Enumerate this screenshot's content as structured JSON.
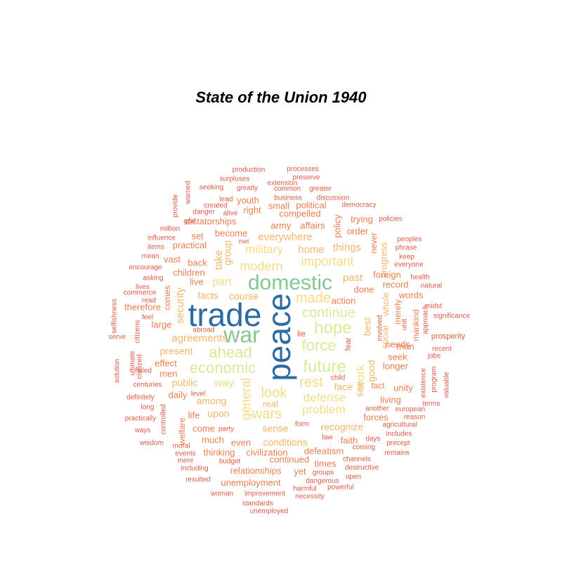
{
  "chart_data": {
    "type": "wordcloud",
    "title": "State of the Union 1940",
    "colors": {
      "tier1": "#2c6aa6",
      "tier2": "#82c792",
      "tier3": "#dbe897",
      "tier4": "#f4dc87",
      "tier5": "#f2b669",
      "tier6": "#e77d4e",
      "tier7": "#da5a45"
    },
    "words": [
      {
        "text": "peace",
        "tier": 1,
        "size": 46,
        "rotate": true
      },
      {
        "text": "trade",
        "tier": 1,
        "size": 46
      },
      {
        "text": "war",
        "tier": 2,
        "size": 32
      },
      {
        "text": "domestic",
        "tier": 2,
        "size": 30
      },
      {
        "text": "hope",
        "tier": 3,
        "size": 24
      },
      {
        "text": "future",
        "tier": 3,
        "size": 24
      },
      {
        "text": "force",
        "tier": 3,
        "size": 22
      },
      {
        "text": "economic",
        "tier": 3,
        "size": 22
      },
      {
        "text": "ahead",
        "tier": 3,
        "size": 22
      },
      {
        "text": "continue",
        "tier": 3,
        "size": 20
      },
      {
        "text": "made",
        "tier": 4,
        "size": 20
      },
      {
        "text": "rest",
        "tier": 4,
        "size": 20
      },
      {
        "text": "look",
        "tier": 4,
        "size": 20
      },
      {
        "text": "wars",
        "tier": 4,
        "size": 20
      },
      {
        "text": "important",
        "tier": 4,
        "size": 18
      },
      {
        "text": "modern",
        "tier": 4,
        "size": 18
      },
      {
        "text": "military",
        "tier": 4,
        "size": 17
      },
      {
        "text": "general",
        "tier": 4,
        "size": 18,
        "rotate": true
      },
      {
        "text": "defense",
        "tier": 4,
        "size": 17
      },
      {
        "text": "problem",
        "tier": 4,
        "size": 17
      },
      {
        "text": "work",
        "tier": 4,
        "size": 17,
        "rotate": true
      },
      {
        "text": "part",
        "tier": 4,
        "size": 16
      },
      {
        "text": "way",
        "tier": 4,
        "size": 16
      },
      {
        "text": "everywhere",
        "tier": 5,
        "size": 15
      },
      {
        "text": "things",
        "tier": 5,
        "size": 15
      },
      {
        "text": "home",
        "tier": 5,
        "size": 15
      },
      {
        "text": "past",
        "tier": 5,
        "size": 15
      },
      {
        "text": "take",
        "tier": 5,
        "size": 15,
        "rotate": true
      },
      {
        "text": "group",
        "tier": 5,
        "size": 14,
        "rotate": true
      },
      {
        "text": "course",
        "tier": 5,
        "size": 14
      },
      {
        "text": "facts",
        "tier": 5,
        "size": 14
      },
      {
        "text": "security",
        "tier": 5,
        "size": 15,
        "rotate": true
      },
      {
        "text": "agreements",
        "tier": 5,
        "size": 15
      },
      {
        "text": "present",
        "tier": 5,
        "size": 14
      },
      {
        "text": "public",
        "tier": 5,
        "size": 14
      },
      {
        "text": "among",
        "tier": 5,
        "size": 14
      },
      {
        "text": "upon",
        "tier": 5,
        "size": 14
      },
      {
        "text": "real",
        "tier": 5,
        "size": 13
      },
      {
        "text": "sense",
        "tier": 5,
        "size": 14
      },
      {
        "text": "conditions",
        "tier": 5,
        "size": 14
      },
      {
        "text": "recognize",
        "tier": 5,
        "size": 14
      },
      {
        "text": "see",
        "tier": 5,
        "size": 14,
        "rotate": true
      },
      {
        "text": "face",
        "tier": 5,
        "size": 14
      },
      {
        "text": "good",
        "tier": 5,
        "size": 14,
        "rotate": true
      },
      {
        "text": "best",
        "tier": 5,
        "size": 14,
        "rotate": true
      },
      {
        "text": "social",
        "tier": 5,
        "size": 13,
        "rotate": true
      },
      {
        "text": "whole",
        "tier": 5,
        "size": 13,
        "rotate": true
      },
      {
        "text": "progress",
        "tier": 5,
        "size": 13,
        "rotate": true
      },
      {
        "text": "action",
        "tier": 6,
        "size": 13
      },
      {
        "text": "done",
        "tier": 6,
        "size": 13
      },
      {
        "text": "record",
        "tier": 6,
        "size": 13
      },
      {
        "text": "foreign",
        "tier": 6,
        "size": 13
      },
      {
        "text": "order",
        "tier": 6,
        "size": 13
      },
      {
        "text": "policy",
        "tier": 6,
        "size": 13,
        "rotate": true
      },
      {
        "text": "trying",
        "tier": 6,
        "size": 13
      },
      {
        "text": "army",
        "tier": 6,
        "size": 13
      },
      {
        "text": "affairs",
        "tier": 6,
        "size": 13
      },
      {
        "text": "become",
        "tier": 6,
        "size": 13
      },
      {
        "text": "compelled",
        "tier": 6,
        "size": 13
      },
      {
        "text": "political",
        "tier": 6,
        "size": 13
      },
      {
        "text": "small",
        "tier": 6,
        "size": 13
      },
      {
        "text": "right",
        "tier": 6,
        "size": 13
      },
      {
        "text": "youth",
        "tier": 6,
        "size": 13
      },
      {
        "text": "dictatorships",
        "tier": 6,
        "size": 13
      },
      {
        "text": "set",
        "tier": 6,
        "size": 13
      },
      {
        "text": "practical",
        "tier": 6,
        "size": 13
      },
      {
        "text": "vast",
        "tier": 6,
        "size": 13
      },
      {
        "text": "back",
        "tier": 6,
        "size": 13
      },
      {
        "text": "children",
        "tier": 6,
        "size": 13
      },
      {
        "text": "live",
        "tier": 6,
        "size": 13
      },
      {
        "text": "comes",
        "tier": 6,
        "size": 12,
        "rotate": true
      },
      {
        "text": "therefore",
        "tier": 6,
        "size": 13
      },
      {
        "text": "large",
        "tier": 6,
        "size": 13
      },
      {
        "text": "effect",
        "tier": 6,
        "size": 13
      },
      {
        "text": "men",
        "tier": 6,
        "size": 13
      },
      {
        "text": "daily",
        "tier": 6,
        "size": 13
      },
      {
        "text": "life",
        "tier": 6,
        "size": 13
      },
      {
        "text": "welfare",
        "tier": 6,
        "size": 12,
        "rotate": true
      },
      {
        "text": "come",
        "tier": 6,
        "size": 13
      },
      {
        "text": "much",
        "tier": 6,
        "size": 13
      },
      {
        "text": "thinking",
        "tier": 6,
        "size": 13
      },
      {
        "text": "even",
        "tier": 6,
        "size": 13
      },
      {
        "text": "civilization",
        "tier": 6,
        "size": 13
      },
      {
        "text": "continued",
        "tier": 6,
        "size": 13
      },
      {
        "text": "defeatism",
        "tier": 6,
        "size": 13
      },
      {
        "text": "faith",
        "tier": 6,
        "size": 13
      },
      {
        "text": "times",
        "tier": 6,
        "size": 13
      },
      {
        "text": "yet",
        "tier": 6,
        "size": 13
      },
      {
        "text": "relationships",
        "tier": 6,
        "size": 13
      },
      {
        "text": "unemployment",
        "tier": 6,
        "size": 13
      },
      {
        "text": "forces",
        "tier": 6,
        "size": 13
      },
      {
        "text": "living",
        "tier": 6,
        "size": 13
      },
      {
        "text": "fact",
        "tier": 6,
        "size": 12
      },
      {
        "text": "unity",
        "tier": 6,
        "size": 13
      },
      {
        "text": "longer",
        "tier": 6,
        "size": 13
      },
      {
        "text": "seek",
        "tier": 6,
        "size": 13
      },
      {
        "text": "needs",
        "tier": 6,
        "size": 13
      },
      {
        "text": "man",
        "tier": 6,
        "size": 13
      },
      {
        "text": "mankind",
        "tier": 6,
        "size": 12,
        "rotate": true
      },
      {
        "text": "merely",
        "tier": 6,
        "size": 12,
        "rotate": true
      },
      {
        "text": "words",
        "tier": 6,
        "size": 13
      },
      {
        "text": "never",
        "tier": 6,
        "size": 12,
        "rotate": true
      },
      {
        "text": "fear",
        "tier": 7,
        "size": 11,
        "rotate": true
      },
      {
        "text": "lie",
        "tier": 7,
        "size": 12
      },
      {
        "text": "production",
        "tier": 7,
        "size": 10
      },
      {
        "text": "processes",
        "tier": 7,
        "size": 10
      },
      {
        "text": "surpluses",
        "tier": 7,
        "size": 10
      },
      {
        "text": "preserve",
        "tier": 7,
        "size": 10
      },
      {
        "text": "extension",
        "tier": 7,
        "size": 10
      },
      {
        "text": "seeking",
        "tier": 7,
        "size": 10
      },
      {
        "text": "greatly",
        "tier": 7,
        "size": 10
      },
      {
        "text": "common",
        "tier": 7,
        "size": 10
      },
      {
        "text": "greater",
        "tier": 7,
        "size": 10
      },
      {
        "text": "warned",
        "tier": 7,
        "size": 10,
        "rotate": true
      },
      {
        "text": "lead",
        "tier": 7,
        "size": 10
      },
      {
        "text": "business",
        "tier": 7,
        "size": 10
      },
      {
        "text": "discussion",
        "tier": 7,
        "size": 10
      },
      {
        "text": "provide",
        "tier": 7,
        "size": 10,
        "rotate": true
      },
      {
        "text": "created",
        "tier": 7,
        "size": 10
      },
      {
        "text": "democracy",
        "tier": 7,
        "size": 10
      },
      {
        "text": "danger",
        "tier": 7,
        "size": 10
      },
      {
        "text": "alive",
        "tier": 7,
        "size": 10
      },
      {
        "text": "god",
        "tier": 7,
        "size": 10
      },
      {
        "text": "policies",
        "tier": 7,
        "size": 10
      },
      {
        "text": "million",
        "tier": 7,
        "size": 10
      },
      {
        "text": "influence",
        "tier": 7,
        "size": 10
      },
      {
        "text": "met",
        "tier": 7,
        "size": 9
      },
      {
        "text": "peoples",
        "tier": 7,
        "size": 10
      },
      {
        "text": "items",
        "tier": 7,
        "size": 10
      },
      {
        "text": "phrase",
        "tier": 7,
        "size": 10
      },
      {
        "text": "mean",
        "tier": 7,
        "size": 10
      },
      {
        "text": "keep",
        "tier": 7,
        "size": 10
      },
      {
        "text": "everyone",
        "tier": 7,
        "size": 10
      },
      {
        "text": "encourage",
        "tier": 7,
        "size": 10
      },
      {
        "text": "asking",
        "tier": 7,
        "size": 10
      },
      {
        "text": "health",
        "tier": 7,
        "size": 10
      },
      {
        "text": "natural",
        "tier": 7,
        "size": 10
      },
      {
        "text": "lives",
        "tier": 7,
        "size": 10
      },
      {
        "text": "commerce",
        "tier": 7,
        "size": 10
      },
      {
        "text": "selfishness",
        "tier": 7,
        "size": 10,
        "rotate": true
      },
      {
        "text": "read",
        "tier": 7,
        "size": 10
      },
      {
        "text": "unit",
        "tier": 7,
        "size": 10,
        "rotate": true
      },
      {
        "text": "approach",
        "tier": 7,
        "size": 10,
        "rotate": true
      },
      {
        "text": "midst",
        "tier": 7,
        "size": 10
      },
      {
        "text": "significance",
        "tier": 7,
        "size": 10
      },
      {
        "text": "involved",
        "tier": 7,
        "size": 10,
        "rotate": true
      },
      {
        "text": "feel",
        "tier": 7,
        "size": 10
      },
      {
        "text": "abroad",
        "tier": 7,
        "size": 10
      },
      {
        "text": "prosperity",
        "tier": 7,
        "size": 11
      },
      {
        "text": "serve",
        "tier": 7,
        "size": 10
      },
      {
        "text": "citizens",
        "tier": 7,
        "size": 10,
        "rotate": true
      },
      {
        "text": "recent",
        "tier": 7,
        "size": 10
      },
      {
        "text": "jobs",
        "tier": 7,
        "size": 10
      },
      {
        "text": "ultimate",
        "tier": 7,
        "size": 10,
        "rotate": true
      },
      {
        "text": "civilized",
        "tier": 7,
        "size": 10,
        "rotate": true
      },
      {
        "text": "solution",
        "tier": 7,
        "size": 10,
        "rotate": true
      },
      {
        "text": "failed",
        "tier": 7,
        "size": 10
      },
      {
        "text": "centuries",
        "tier": 7,
        "size": 10
      },
      {
        "text": "child",
        "tier": 7,
        "size": 10
      },
      {
        "text": "existence",
        "tier": 7,
        "size": 10,
        "rotate": true
      },
      {
        "text": "program",
        "tier": 7,
        "size": 10,
        "rotate": true
      },
      {
        "text": "valuable",
        "tier": 7,
        "size": 10,
        "rotate": true
      },
      {
        "text": "definitely",
        "tier": 7,
        "size": 10
      },
      {
        "text": "level",
        "tier": 7,
        "size": 10
      },
      {
        "text": "terms",
        "tier": 7,
        "size": 10
      },
      {
        "text": "long",
        "tier": 7,
        "size": 10
      },
      {
        "text": "another",
        "tier": 7,
        "size": 10
      },
      {
        "text": "european",
        "tier": 7,
        "size": 10
      },
      {
        "text": "controlled",
        "tier": 7,
        "size": 10,
        "rotate": true
      },
      {
        "text": "reason",
        "tier": 7,
        "size": 10
      },
      {
        "text": "practically",
        "tier": 7,
        "size": 10
      },
      {
        "text": "agricultural",
        "tier": 7,
        "size": 10
      },
      {
        "text": "form",
        "tier": 7,
        "size": 10
      },
      {
        "text": "ways",
        "tier": 7,
        "size": 10
      },
      {
        "text": "party",
        "tier": 7,
        "size": 10
      },
      {
        "text": "includes",
        "tier": 7,
        "size": 10
      },
      {
        "text": "wisdom",
        "tier": 7,
        "size": 10
      },
      {
        "text": "law",
        "tier": 7,
        "size": 10
      },
      {
        "text": "days",
        "tier": 7,
        "size": 10
      },
      {
        "text": "precept",
        "tier": 7,
        "size": 10
      },
      {
        "text": "moral",
        "tier": 7,
        "size": 10
      },
      {
        "text": "coming",
        "tier": 7,
        "size": 10
      },
      {
        "text": "events",
        "tier": 7,
        "size": 10
      },
      {
        "text": "remains",
        "tier": 7,
        "size": 10
      },
      {
        "text": "mere",
        "tier": 7,
        "size": 10
      },
      {
        "text": "budget",
        "tier": 7,
        "size": 10
      },
      {
        "text": "channels",
        "tier": 7,
        "size": 10
      },
      {
        "text": "including",
        "tier": 7,
        "size": 10
      },
      {
        "text": "destructive",
        "tier": 7,
        "size": 10
      },
      {
        "text": "groups",
        "tier": 7,
        "size": 10
      },
      {
        "text": "resulted",
        "tier": 7,
        "size": 10
      },
      {
        "text": "dangerous",
        "tier": 7,
        "size": 10
      },
      {
        "text": "open",
        "tier": 7,
        "size": 10
      },
      {
        "text": "harmful",
        "tier": 7,
        "size": 10
      },
      {
        "text": "powerful",
        "tier": 7,
        "size": 10
      },
      {
        "text": "woman",
        "tier": 7,
        "size": 10
      },
      {
        "text": "improvement",
        "tier": 7,
        "size": 10
      },
      {
        "text": "necessity",
        "tier": 7,
        "size": 10
      },
      {
        "text": "standards",
        "tier": 7,
        "size": 10
      },
      {
        "text": "unemployed",
        "tier": 7,
        "size": 10
      }
    ]
  }
}
